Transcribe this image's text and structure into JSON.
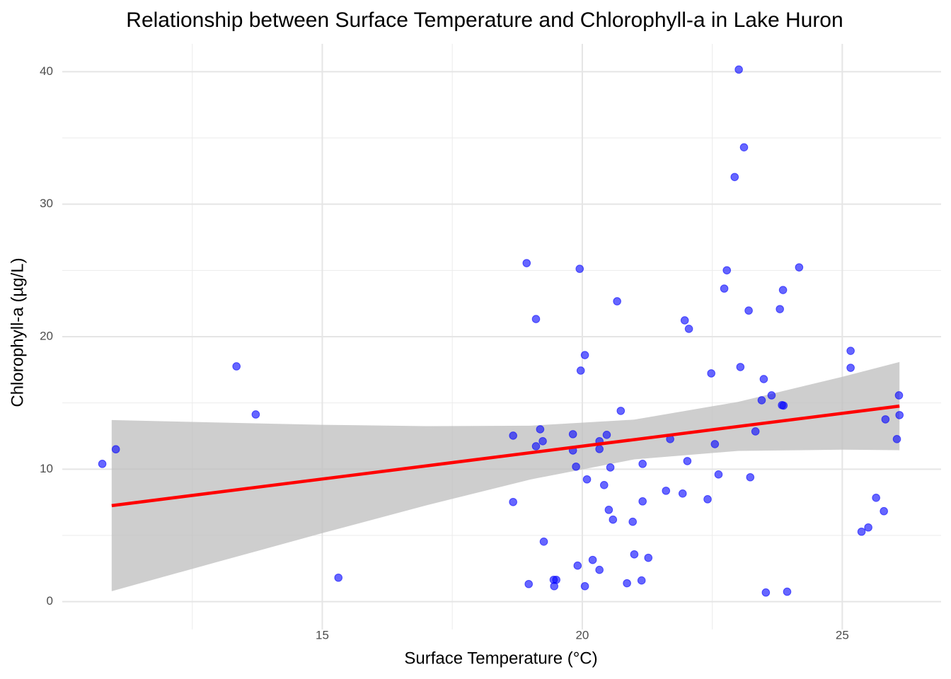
{
  "chart_data": {
    "type": "scatter",
    "title": "Relationship between Surface Temperature and Chlorophyll-a in Lake Huron",
    "x_label": "Surface Temperature (°C)",
    "y_label": "Chlorophyll-a (µg/L)",
    "xlim": [
      10,
      26.9
    ],
    "ylim": [
      -2.1,
      42.1
    ],
    "xticks": [
      15,
      20,
      25
    ],
    "yticks": [
      0,
      10,
      20,
      30,
      40
    ],
    "x_minor_ticks": [
      12.5,
      17.5,
      22.5
    ],
    "y_minor_ticks": [
      5,
      15,
      25,
      35
    ],
    "grid": true,
    "color": "#0000ff",
    "x": [
      10.77,
      11.03,
      13.35,
      13.72,
      15.31,
      18.67,
      18.67,
      18.93,
      18.97,
      19.11,
      19.19,
      19.24,
      19.11,
      19.26,
      19.45,
      19.5,
      19.46,
      19.82,
      19.82,
      19.88,
      19.91,
      19.95,
      19.97,
      20.05,
      20.05,
      20.09,
      20.2,
      20.33,
      20.33,
      20.33,
      20.42,
      20.47,
      20.51,
      20.54,
      20.59,
      20.67,
      20.74,
      20.86,
      20.97,
      21.0,
      21.14,
      21.16,
      21.16,
      21.27,
      21.61,
      21.69,
      21.93,
      21.97,
      22.02,
      22.05,
      22.41,
      22.48,
      22.55,
      22.62,
      22.73,
      22.78,
      22.93,
      23.01,
      23.04,
      23.11,
      23.2,
      23.23,
      23.33,
      23.45,
      23.49,
      23.53,
      23.64,
      23.8,
      23.84,
      23.86,
      23.87,
      23.94,
      24.17,
      25.16,
      25.16,
      25.37,
      25.5,
      25.65,
      25.8,
      25.83,
      26.05,
      26.09,
      26.1
    ],
    "y": [
      10.4,
      11.5,
      17.76,
      14.13,
      1.81,
      12.53,
      7.52,
      25.55,
      1.33,
      11.73,
      13.01,
      12.11,
      21.33,
      4.53,
      1.65,
      1.65,
      1.17,
      12.64,
      11.41,
      10.19,
      2.72,
      25.12,
      17.44,
      18.61,
      1.17,
      9.23,
      3.15,
      12.11,
      11.52,
      2.4,
      8.8,
      12.59,
      6.93,
      10.13,
      6.19,
      22.67,
      14.4,
      1.39,
      6.03,
      3.57,
      1.6,
      10.4,
      7.57,
      3.31,
      8.37,
      12.27,
      8.16,
      21.23,
      10.61,
      20.59,
      7.73,
      17.23,
      11.89,
      9.6,
      23.63,
      25.01,
      32.05,
      40.16,
      17.71,
      34.29,
      21.97,
      9.39,
      12.85,
      15.2,
      16.8,
      0.69,
      15.57,
      22.08,
      14.83,
      23.52,
      14.8,
      0.75,
      25.23,
      18.93,
      17.65,
      5.28,
      5.6,
      7.84,
      6.83,
      13.76,
      12.27,
      15.57,
      14.08
    ],
    "fit": {
      "color": "#ff0000",
      "x": [
        10.95,
        26.1
      ],
      "y": [
        7.25,
        14.76
      ]
    },
    "band": {
      "color": "#bebebe",
      "x": [
        10.95,
        13,
        15,
        17,
        19,
        21,
        23,
        25,
        26.1
      ],
      "lower": [
        0.79,
        3.02,
        5.17,
        7.27,
        9.22,
        10.74,
        11.38,
        11.47,
        11.43
      ],
      "upper": [
        13.71,
        13.52,
        13.35,
        13.25,
        13.28,
        13.74,
        15.08,
        16.97,
        18.09
      ]
    }
  }
}
